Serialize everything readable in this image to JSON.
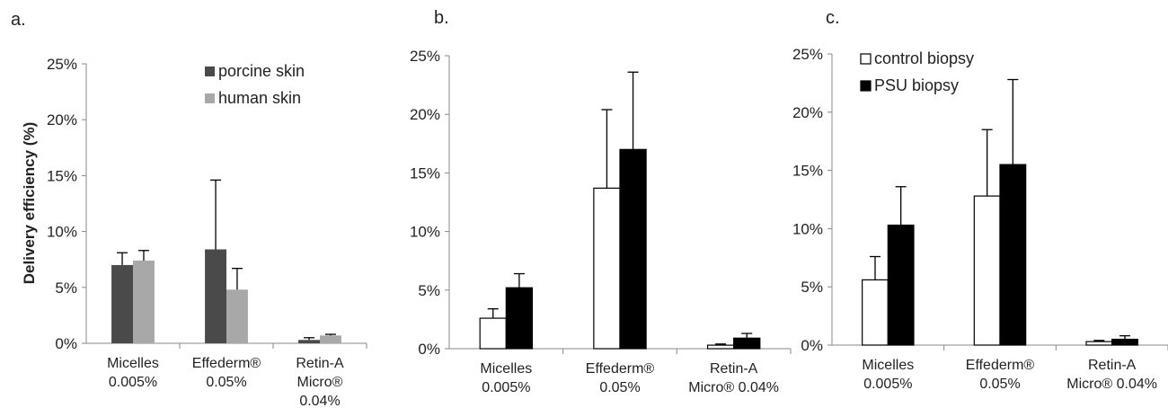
{
  "chart_data": [
    {
      "panel": "a.",
      "type": "bar",
      "ylabel": "Delivery efficiency (%)",
      "ylim": [
        0,
        25
      ],
      "yticks": [
        "0%",
        "5%",
        "10%",
        "15%",
        "20%",
        "25%"
      ],
      "categories": [
        [
          "Micelles",
          "0.005%"
        ],
        [
          "Effederm®",
          "0.05%"
        ],
        [
          "Retin-A",
          "Micro®",
          "0.04%"
        ]
      ],
      "legend_position": "top-right",
      "series": [
        {
          "name": "porcine skin",
          "color": "#4a4a4a",
          "values": [
            7.0,
            8.4,
            0.3
          ],
          "errors": [
            1.1,
            6.2,
            0.2
          ]
        },
        {
          "name": "human skin",
          "color": "#a8a8a8",
          "values": [
            7.4,
            4.8,
            0.7
          ],
          "errors": [
            0.9,
            1.9,
            0.1
          ]
        }
      ]
    },
    {
      "panel": "b.",
      "type": "bar",
      "ylabel": "",
      "ylim": [
        0,
        25
      ],
      "yticks": [
        "0%",
        "5%",
        "10%",
        "15%",
        "20%",
        "25%"
      ],
      "categories": [
        [
          "Micelles",
          "0.005%"
        ],
        [
          "Effederm®",
          "0.05%"
        ],
        [
          "Retin-A",
          "Micro® 0.04%"
        ]
      ],
      "legend_position": "",
      "series": [
        {
          "name": "",
          "color": "#ffffff",
          "values": [
            2.6,
            13.7,
            0.3
          ],
          "errors": [
            0.8,
            6.7,
            0.1
          ]
        },
        {
          "name": "",
          "color": "#000000",
          "values": [
            5.2,
            17.0,
            0.9
          ],
          "errors": [
            1.2,
            6.6,
            0.4
          ]
        }
      ]
    },
    {
      "panel": "c.",
      "type": "bar",
      "ylabel": "",
      "ylim": [
        0,
        25
      ],
      "yticks": [
        "0%",
        "5%",
        "10%",
        "15%",
        "20%",
        "25%"
      ],
      "categories": [
        [
          "Micelles",
          "0.005%"
        ],
        [
          "Effederm®",
          "0.05%"
        ],
        [
          "Retin-A",
          "Micro® 0.04%"
        ]
      ],
      "legend_position": "top-left",
      "series": [
        {
          "name": "control biopsy",
          "color": "#ffffff",
          "values": [
            5.6,
            12.8,
            0.3
          ],
          "errors": [
            2.0,
            5.7,
            0.1
          ]
        },
        {
          "name": "PSU biopsy",
          "color": "#000000",
          "values": [
            10.3,
            15.5,
            0.5
          ],
          "errors": [
            3.3,
            7.3,
            0.3
          ]
        }
      ]
    }
  ]
}
